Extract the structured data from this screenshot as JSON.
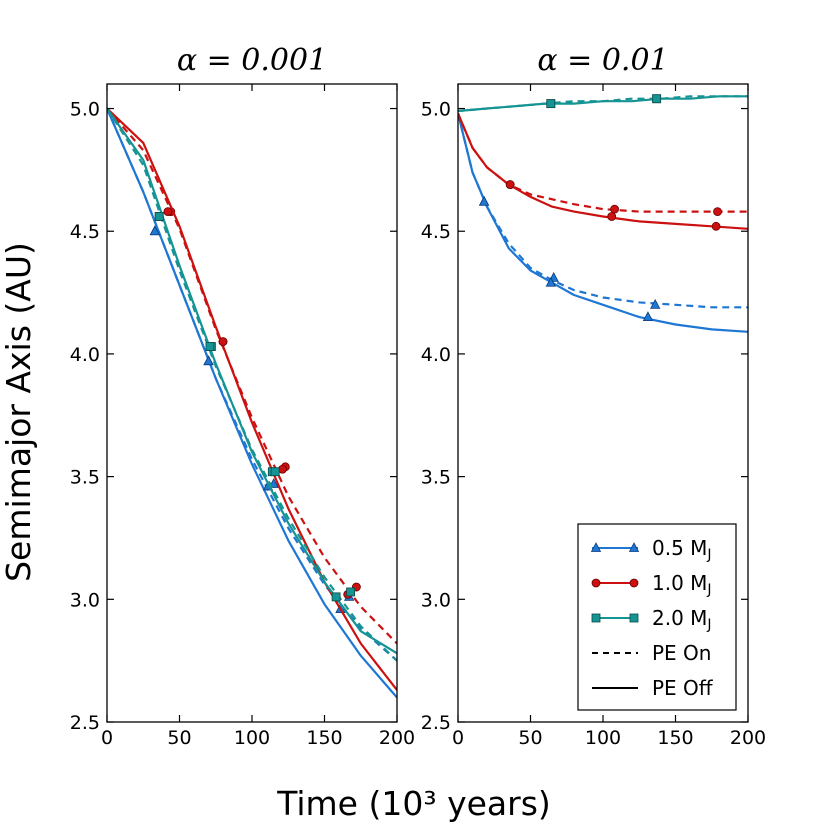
{
  "chart_data": {
    "xlabel": "Time",
    "xlabel_unit": "(10³ years)",
    "ylabel": "Semimajor Axis (AU)",
    "legend": {
      "location": "lower-right of right panel",
      "entries": [
        {
          "label": "0.5 M",
          "sub": "J",
          "color": "#1f77d4",
          "marker": "triangle",
          "style": "solid"
        },
        {
          "label": "1.0 M",
          "sub": "J",
          "color": "#cc1111",
          "marker": "circle",
          "style": "solid"
        },
        {
          "label": "2.0 M",
          "sub": "J",
          "color": "#169494",
          "marker": "square",
          "style": "solid"
        },
        {
          "label": "PE On",
          "sub": "",
          "color": "#000000",
          "marker": "none",
          "style": "dashed"
        },
        {
          "label": "PE Off",
          "sub": "",
          "color": "#000000",
          "marker": "none",
          "style": "solid"
        }
      ]
    },
    "panels": [
      {
        "type": "line",
        "title": "α = 0.001",
        "xlim": [
          0,
          200
        ],
        "ylim": [
          2.5,
          5.1
        ],
        "xticks": [
          "0",
          "50",
          "100",
          "150",
          "200"
        ],
        "yticks": [
          "2.5",
          "3.0",
          "3.5",
          "4.0",
          "4.5",
          "5.0"
        ],
        "series": [
          {
            "name": "0.5 MJ PE On",
            "color": "#1f77d4",
            "dash": true,
            "marker": "triangle",
            "x": [
              0,
              25,
              50,
              75,
              100,
              125,
              150,
              175,
              200
            ],
            "y": [
              5.0,
              4.66,
              4.28,
              3.9,
              3.57,
              3.29,
              3.06,
              2.88,
              2.75
            ],
            "markers_x": [
              33,
              70,
              115,
              167
            ],
            "markers_y": [
              4.5,
              3.97,
              3.47,
              3.01
            ]
          },
          {
            "name": "0.5 MJ PE Off",
            "color": "#1f77d4",
            "dash": false,
            "marker": "triangle",
            "x": [
              0,
              25,
              50,
              75,
              100,
              125,
              150,
              175,
              200
            ],
            "y": [
              5.0,
              4.66,
              4.28,
              3.9,
              3.55,
              3.24,
              2.98,
              2.77,
              2.6
            ],
            "markers_x": [
              33,
              70,
              111,
              161
            ],
            "markers_y": [
              4.5,
              3.97,
              3.46,
              2.96
            ]
          },
          {
            "name": "1.0 MJ PE On",
            "color": "#cc1111",
            "dash": true,
            "marker": "circle",
            "x": [
              0,
              25,
              50,
              75,
              100,
              125,
              150,
              175,
              200
            ],
            "y": [
              5.0,
              4.83,
              4.51,
              4.1,
              3.74,
              3.42,
              3.17,
              2.97,
              2.82
            ],
            "markers_x": [
              44,
              80,
              123,
              172
            ],
            "markers_y": [
              4.58,
              4.05,
              3.54,
              3.05
            ]
          },
          {
            "name": "1.0 MJ PE Off",
            "color": "#cc1111",
            "dash": false,
            "marker": "circle",
            "x": [
              0,
              25,
              50,
              75,
              100,
              125,
              150,
              175,
              200
            ],
            "y": [
              5.0,
              4.86,
              4.52,
              4.11,
              3.72,
              3.37,
              3.07,
              2.82,
              2.63
            ],
            "markers_x": [
              42,
              80,
              121,
              166
            ],
            "markers_y": [
              4.58,
              4.05,
              3.53,
              3.02
            ]
          },
          {
            "name": "2.0 MJ PE On",
            "color": "#169494",
            "dash": true,
            "marker": "square",
            "x": [
              0,
              25,
              50,
              75,
              100,
              125,
              150,
              175,
              200
            ],
            "y": [
              5.0,
              4.77,
              4.34,
              3.95,
              3.61,
              3.33,
              3.09,
              2.89,
              2.75
            ],
            "markers_x": [
              36,
              72,
              114,
              168
            ],
            "markers_y": [
              4.56,
              4.03,
              3.52,
              3.03
            ]
          },
          {
            "name": "2.0 MJ PE Off",
            "color": "#169494",
            "dash": false,
            "marker": "square",
            "x": [
              0,
              25,
              50,
              75,
              100,
              125,
              150,
              175,
              200
            ],
            "y": [
              5.0,
              4.79,
              4.36,
              3.96,
              3.6,
              3.31,
              3.07,
              2.87,
              2.78
            ],
            "markers_x": [
              36,
              71,
              116,
              158
            ],
            "markers_y": [
              4.56,
              4.03,
              3.52,
              3.01
            ]
          }
        ]
      },
      {
        "type": "line",
        "title": "α = 0.01",
        "xlim": [
          0,
          200
        ],
        "ylim": [
          2.5,
          5.1
        ],
        "xticks": [
          "0",
          "50",
          "100",
          "150",
          "200"
        ],
        "yticks": [
          "2.5",
          "3.0",
          "3.5",
          "4.0",
          "4.5",
          "5.0"
        ],
        "series": [
          {
            "name": "0.5 MJ PE On",
            "color": "#1f77d4",
            "dash": true,
            "marker": "triangle",
            "x": [
              0,
              10,
              20,
              35,
              50,
              65,
              80,
              100,
              125,
              150,
              175,
              200
            ],
            "y": [
              4.98,
              4.74,
              4.6,
              4.45,
              4.35,
              4.3,
              4.26,
              4.23,
              4.21,
              4.2,
              4.19,
              4.19
            ],
            "markers_x": [
              18,
              66,
              136
            ],
            "markers_y": [
              4.62,
              4.31,
              4.2
            ]
          },
          {
            "name": "0.5 MJ PE Off",
            "color": "#1f77d4",
            "dash": false,
            "marker": "triangle",
            "x": [
              0,
              10,
              20,
              35,
              50,
              65,
              80,
              100,
              125,
              150,
              175,
              200
            ],
            "y": [
              4.98,
              4.74,
              4.6,
              4.43,
              4.34,
              4.29,
              4.24,
              4.2,
              4.15,
              4.12,
              4.1,
              4.09
            ],
            "markers_x": [
              18,
              64,
              131
            ],
            "markers_y": [
              4.62,
              4.29,
              4.15
            ]
          },
          {
            "name": "1.0 MJ PE On",
            "color": "#cc1111",
            "dash": true,
            "marker": "circle",
            "x": [
              0,
              10,
              20,
              35,
              50,
              65,
              80,
              100,
              125,
              150,
              175,
              200
            ],
            "y": [
              4.98,
              4.84,
              4.76,
              4.69,
              4.65,
              4.63,
              4.61,
              4.59,
              4.58,
              4.58,
              4.58,
              4.58
            ],
            "markers_x": [
              36,
              108,
              179
            ],
            "markers_y": [
              4.69,
              4.59,
              4.58
            ]
          },
          {
            "name": "1.0 MJ PE Off",
            "color": "#cc1111",
            "dash": false,
            "marker": "circle",
            "x": [
              0,
              10,
              20,
              35,
              50,
              65,
              80,
              100,
              125,
              150,
              175,
              200
            ],
            "y": [
              4.98,
              4.84,
              4.76,
              4.69,
              4.64,
              4.6,
              4.58,
              4.56,
              4.54,
              4.53,
              4.52,
              4.51
            ],
            "markers_x": [
              36,
              106,
              178
            ],
            "markers_y": [
              4.69,
              4.56,
              4.52
            ]
          },
          {
            "name": "2.0 MJ PE On",
            "color": "#169494",
            "dash": true,
            "marker": "square",
            "x": [
              0,
              20,
              40,
              60,
              80,
              100,
              120,
              140,
              160,
              180,
              200
            ],
            "y": [
              4.99,
              5.0,
              5.01,
              5.02,
              5.03,
              5.03,
              5.04,
              5.04,
              5.05,
              5.05,
              5.05
            ],
            "markers_x": [
              64,
              137
            ],
            "markers_y": [
              5.02,
              5.04
            ]
          },
          {
            "name": "2.0 MJ PE Off",
            "color": "#169494",
            "dash": false,
            "marker": "square",
            "x": [
              0,
              20,
              40,
              60,
              80,
              100,
              120,
              140,
              160,
              180,
              200
            ],
            "y": [
              4.99,
              5.0,
              5.01,
              5.02,
              5.02,
              5.03,
              5.03,
              5.04,
              5.04,
              5.05,
              5.05
            ],
            "markers_x": [
              64,
              137
            ],
            "markers_y": [
              5.02,
              5.04
            ]
          }
        ]
      }
    ]
  }
}
